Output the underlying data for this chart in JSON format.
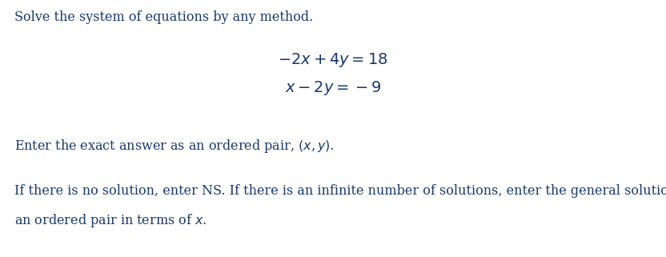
{
  "background_color": "#ffffff",
  "title_text": "Solve the system of equations by any method.",
  "title_color": "#1a3a6b",
  "title_fontsize": 11.5,
  "eq1": "$-2x + 4y = 18$",
  "eq2": "$x - 2y = -9$",
  "eq_color": "#1a3a6b",
  "eq_fontsize": 14.0,
  "line1_plain": "Enter the exact answer as an ordered pair, ",
  "line1_math": "$(x, y)$",
  "line1_suffix": ".",
  "line1_color": "#1a3a6b",
  "line1_fontsize": 11.5,
  "line2_text": "If there is no solution, enter NS. If there is an infinite number of solutions, enter the general solution as",
  "line2_color": "#1a3a6b",
  "line2_fontsize": 11.5,
  "line3_plain": "an ordered pair in terms of ",
  "line3_math": "$x$",
  "line3_suffix": ".",
  "line3_color": "#1a3a6b",
  "line3_fontsize": 11.5,
  "fig_width": 8.32,
  "fig_height": 3.21,
  "dpi": 100
}
